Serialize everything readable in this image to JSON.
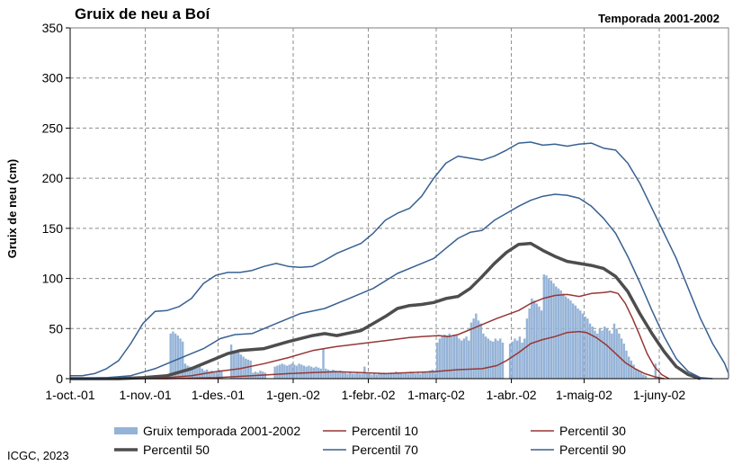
{
  "chart_data": {
    "type": "bar+line",
    "title": "Gruix de neu a Boí",
    "subtitle": "Temporada 2001-2002",
    "ylabel": "Gruix de neu (cm)",
    "xlabel": "",
    "ylim": [
      0,
      350
    ],
    "yticks": [
      0,
      50,
      100,
      150,
      200,
      250,
      300,
      350
    ],
    "grid": true,
    "legend_placement": "bottom",
    "x_domain_days": [
      0,
      243
    ],
    "x_ticks": [
      {
        "label": "1-oct.-01",
        "day": 0
      },
      {
        "label": "1-nov.-01",
        "day": 31
      },
      {
        "label": "1-des.-01",
        "day": 61
      },
      {
        "label": "1-gen.-02",
        "day": 92
      },
      {
        "label": "1-febr.-02",
        "day": 123
      },
      {
        "label": "1-març-02",
        "day": 151
      },
      {
        "label": "1-abr.-02",
        "day": 182
      },
      {
        "label": "1-maig-02",
        "day": 212
      },
      {
        "label": "1-juny-02",
        "day": 243
      }
    ],
    "bars": {
      "name": "Gruix temporada 2001-2002",
      "color": "#95b3d7",
      "segments": [
        {
          "start_day": 41,
          "end_day": 46,
          "values": [
            45,
            47,
            45,
            43,
            40,
            37
          ]
        },
        {
          "start_day": 47,
          "end_day": 54,
          "values": [
            15,
            13,
            12,
            11,
            10,
            11,
            12,
            10
          ]
        },
        {
          "start_day": 55,
          "end_day": 62,
          "values": [
            8,
            9,
            7,
            8,
            6,
            7,
            9,
            8
          ]
        },
        {
          "start_day": 66,
          "end_day": 66,
          "values": [
            34
          ]
        },
        {
          "start_day": 67,
          "end_day": 74,
          "values": [
            28,
            27,
            26,
            24,
            22,
            20,
            19,
            18
          ]
        },
        {
          "start_day": 75,
          "end_day": 80,
          "values": [
            6,
            7,
            6,
            8,
            7,
            6
          ]
        },
        {
          "start_day": 84,
          "end_day": 103,
          "values": [
            12,
            13,
            14,
            15,
            14,
            13,
            14,
            15,
            14,
            13,
            15,
            14,
            13,
            12,
            13,
            12,
            11,
            12,
            11,
            10
          ]
        },
        {
          "start_day": 104,
          "end_day": 104,
          "values": [
            30
          ]
        },
        {
          "start_day": 105,
          "end_day": 112,
          "values": [
            10,
            9,
            8,
            9,
            8,
            7,
            8,
            7
          ]
        },
        {
          "start_day": 113,
          "end_day": 126,
          "values": [
            6,
            5,
            6,
            5,
            5,
            6,
            5,
            5,
            12,
            5,
            5,
            4,
            5,
            4
          ]
        },
        {
          "start_day": 127,
          "end_day": 150,
          "values": [
            6,
            5,
            6,
            5,
            5,
            6,
            5,
            7,
            5,
            6,
            5,
            6,
            5,
            7,
            6,
            5,
            6,
            5,
            6,
            7,
            6,
            8,
            9,
            8
          ]
        },
        {
          "start_day": 151,
          "end_day": 164,
          "values": [
            36,
            40,
            42,
            44,
            43,
            45,
            42,
            44,
            43,
            40,
            38,
            40,
            42,
            38
          ]
        },
        {
          "start_day": 165,
          "end_day": 175,
          "values": [
            56,
            60,
            65,
            58,
            55,
            45,
            42,
            40,
            38,
            37,
            40
          ]
        },
        {
          "start_day": 176,
          "end_day": 178,
          "values": [
            38,
            40,
            36
          ]
        },
        {
          "start_day": 181,
          "end_day": 187,
          "values": [
            35,
            37,
            40,
            38,
            42,
            36,
            40
          ]
        },
        {
          "start_day": 188,
          "end_day": 194,
          "values": [
            60,
            70,
            80,
            78,
            75,
            72,
            68
          ]
        },
        {
          "start_day": 195,
          "end_day": 210,
          "values": [
            104,
            103,
            100,
            98,
            95,
            92,
            90,
            88,
            85,
            82,
            80,
            78,
            75,
            73,
            70,
            68
          ]
        },
        {
          "start_day": 211,
          "end_day": 223,
          "values": [
            65,
            62,
            60,
            55,
            52,
            48,
            45,
            50,
            48,
            52,
            50,
            48,
            45
          ]
        },
        {
          "start_day": 224,
          "end_day": 233,
          "values": [
            55,
            50,
            45,
            40,
            35,
            28,
            22,
            18,
            14,
            10
          ]
        },
        {
          "start_day": 234,
          "end_day": 237,
          "values": [
            8,
            6,
            4,
            3
          ]
        },
        {
          "start_day": 241,
          "end_day": 241,
          "values": [
            15
          ]
        }
      ]
    },
    "series": [
      {
        "name": "Percentil 10",
        "color": "#953735",
        "width": 1.5,
        "points": [
          [
            0,
            0
          ],
          [
            20,
            0
          ],
          [
            40,
            0
          ],
          [
            60,
            1
          ],
          [
            75,
            3
          ],
          [
            90,
            5
          ],
          [
            100,
            6
          ],
          [
            110,
            7
          ],
          [
            120,
            6
          ],
          [
            130,
            5
          ],
          [
            140,
            6
          ],
          [
            150,
            7
          ],
          [
            160,
            9
          ],
          [
            170,
            10
          ],
          [
            176,
            13
          ],
          [
            180,
            18
          ],
          [
            185,
            26
          ],
          [
            190,
            35
          ],
          [
            195,
            39
          ],
          [
            200,
            42
          ],
          [
            205,
            46
          ],
          [
            210,
            47
          ],
          [
            213,
            46
          ],
          [
            217,
            41
          ],
          [
            221,
            34
          ],
          [
            225,
            25
          ],
          [
            229,
            16
          ],
          [
            233,
            10
          ],
          [
            237,
            5
          ],
          [
            241,
            2
          ],
          [
            245,
            0
          ]
        ]
      },
      {
        "name": "Percentil 30",
        "color": "#953735",
        "width": 1.5,
        "points": [
          [
            0,
            0
          ],
          [
            20,
            0
          ],
          [
            40,
            1
          ],
          [
            50,
            3
          ],
          [
            60,
            7
          ],
          [
            70,
            10
          ],
          [
            80,
            15
          ],
          [
            90,
            21
          ],
          [
            100,
            28
          ],
          [
            110,
            32
          ],
          [
            120,
            35
          ],
          [
            130,
            38
          ],
          [
            140,
            41
          ],
          [
            145,
            42
          ],
          [
            152,
            43
          ],
          [
            156,
            42
          ],
          [
            160,
            44
          ],
          [
            168,
            52
          ],
          [
            176,
            60
          ],
          [
            185,
            68
          ],
          [
            190,
            75
          ],
          [
            195,
            80
          ],
          [
            200,
            83
          ],
          [
            205,
            84
          ],
          [
            210,
            82
          ],
          [
            215,
            85
          ],
          [
            220,
            86
          ],
          [
            223,
            87
          ],
          [
            226,
            85
          ],
          [
            229,
            75
          ],
          [
            232,
            60
          ],
          [
            235,
            43
          ],
          [
            238,
            25
          ],
          [
            241,
            12
          ],
          [
            244,
            4
          ],
          [
            247,
            0
          ]
        ]
      },
      {
        "name": "Percentil 50",
        "color": "#4d4d4d",
        "width": 3.5,
        "points": [
          [
            0,
            0
          ],
          [
            20,
            0
          ],
          [
            30,
            1
          ],
          [
            40,
            3
          ],
          [
            50,
            10
          ],
          [
            60,
            20
          ],
          [
            65,
            25
          ],
          [
            70,
            28
          ],
          [
            80,
            30
          ],
          [
            90,
            37
          ],
          [
            100,
            43
          ],
          [
            105,
            45
          ],
          [
            110,
            43
          ],
          [
            120,
            48
          ],
          [
            125,
            55
          ],
          [
            130,
            62
          ],
          [
            135,
            70
          ],
          [
            140,
            73
          ],
          [
            145,
            74
          ],
          [
            150,
            76
          ],
          [
            155,
            80
          ],
          [
            160,
            82
          ],
          [
            165,
            90
          ],
          [
            170,
            102
          ],
          [
            175,
            115
          ],
          [
            180,
            126
          ],
          [
            185,
            134
          ],
          [
            190,
            135
          ],
          [
            195,
            128
          ],
          [
            200,
            122
          ],
          [
            205,
            117
          ],
          [
            210,
            115
          ],
          [
            215,
            113
          ],
          [
            220,
            110
          ],
          [
            225,
            102
          ],
          [
            230,
            87
          ],
          [
            235,
            65
          ],
          [
            240,
            45
          ],
          [
            245,
            27
          ],
          [
            250,
            12
          ],
          [
            255,
            4
          ],
          [
            260,
            0
          ]
        ]
      },
      {
        "name": "Percentil 70",
        "color": "#376092",
        "width": 1.5,
        "points": [
          [
            0,
            0
          ],
          [
            15,
            1
          ],
          [
            25,
            3
          ],
          [
            35,
            10
          ],
          [
            45,
            20
          ],
          [
            55,
            30
          ],
          [
            62,
            40
          ],
          [
            68,
            44
          ],
          [
            75,
            45
          ],
          [
            85,
            55
          ],
          [
            95,
            65
          ],
          [
            105,
            70
          ],
          [
            115,
            80
          ],
          [
            125,
            90
          ],
          [
            135,
            105
          ],
          [
            145,
            115
          ],
          [
            150,
            120
          ],
          [
            155,
            130
          ],
          [
            160,
            140
          ],
          [
            165,
            146
          ],
          [
            170,
            148
          ],
          [
            175,
            158
          ],
          [
            180,
            165
          ],
          [
            185,
            172
          ],
          [
            190,
            178
          ],
          [
            195,
            182
          ],
          [
            200,
            184
          ],
          [
            205,
            183
          ],
          [
            210,
            180
          ],
          [
            215,
            172
          ],
          [
            220,
            160
          ],
          [
            225,
            145
          ],
          [
            230,
            122
          ],
          [
            235,
            96
          ],
          [
            240,
            68
          ],
          [
            245,
            42
          ],
          [
            250,
            20
          ],
          [
            255,
            7
          ],
          [
            260,
            1
          ],
          [
            265,
            0
          ]
        ]
      },
      {
        "name": "Percentil 90",
        "color": "#376092",
        "width": 1.5,
        "points": [
          [
            0,
            3
          ],
          [
            5,
            3
          ],
          [
            10,
            5
          ],
          [
            15,
            10
          ],
          [
            20,
            18
          ],
          [
            25,
            35
          ],
          [
            30,
            55
          ],
          [
            35,
            67
          ],
          [
            40,
            68
          ],
          [
            45,
            72
          ],
          [
            50,
            80
          ],
          [
            55,
            95
          ],
          [
            60,
            103
          ],
          [
            65,
            106
          ],
          [
            70,
            106
          ],
          [
            75,
            108
          ],
          [
            80,
            112
          ],
          [
            85,
            115
          ],
          [
            90,
            112
          ],
          [
            95,
            111
          ],
          [
            100,
            112
          ],
          [
            105,
            118
          ],
          [
            110,
            125
          ],
          [
            115,
            130
          ],
          [
            120,
            135
          ],
          [
            125,
            145
          ],
          [
            130,
            158
          ],
          [
            135,
            165
          ],
          [
            140,
            170
          ],
          [
            145,
            182
          ],
          [
            150,
            200
          ],
          [
            155,
            215
          ],
          [
            160,
            222
          ],
          [
            165,
            220
          ],
          [
            170,
            218
          ],
          [
            175,
            222
          ],
          [
            180,
            228
          ],
          [
            185,
            235
          ],
          [
            190,
            236
          ],
          [
            195,
            233
          ],
          [
            200,
            234
          ],
          [
            205,
            232
          ],
          [
            210,
            234
          ],
          [
            215,
            235
          ],
          [
            220,
            230
          ],
          [
            225,
            228
          ],
          [
            230,
            215
          ],
          [
            235,
            195
          ],
          [
            240,
            170
          ],
          [
            245,
            145
          ],
          [
            250,
            120
          ],
          [
            255,
            90
          ],
          [
            260,
            60
          ],
          [
            265,
            35
          ],
          [
            270,
            15
          ],
          [
            275,
            5
          ],
          [
            280,
            1
          ]
        ]
      }
    ],
    "legend": [
      {
        "label": "Gruix temporada 2001-2002",
        "kind": "bar",
        "color": "#95b3d7"
      },
      {
        "label": "Percentil 10",
        "kind": "line",
        "color": "#953735",
        "width": 1.5
      },
      {
        "label": "Percentil 30",
        "kind": "line",
        "color": "#953735",
        "width": 1.5
      },
      {
        "label": "Percentil 50",
        "kind": "line",
        "color": "#4d4d4d",
        "width": 3.5
      },
      {
        "label": "Percentil 70",
        "kind": "line",
        "color": "#376092",
        "width": 1.5
      },
      {
        "label": "Percentil 90",
        "kind": "line",
        "color": "#376092",
        "width": 1.5
      }
    ],
    "credit": "ICGC, 2023"
  }
}
